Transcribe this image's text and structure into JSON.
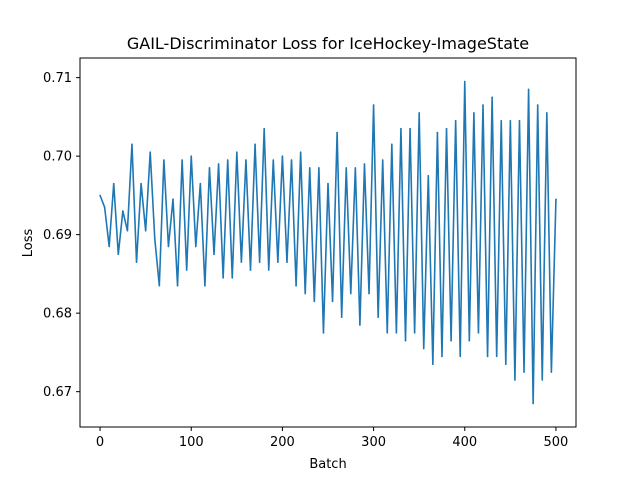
{
  "chart_data": {
    "type": "line",
    "title": "GAIL-Discriminator Loss for IceHockey-ImageState",
    "xlabel": "Batch",
    "ylabel": "Loss",
    "xlim": [
      -22,
      522
    ],
    "ylim": [
      0.6655,
      0.7125
    ],
    "xticks": [
      0,
      100,
      200,
      300,
      400,
      500
    ],
    "xtick_labels": [
      "0",
      "100",
      "200",
      "300",
      "400",
      "500"
    ],
    "yticks": [
      0.67,
      0.68,
      0.69,
      0.7,
      0.71
    ],
    "ytick_labels": [
      "0.67",
      "0.68",
      "0.69",
      "0.70",
      "0.71"
    ],
    "grid": false,
    "series": [
      {
        "color": "#1f77b4",
        "x": [
          0,
          5,
          10,
          15,
          20,
          25,
          30,
          35,
          40,
          45,
          50,
          55,
          60,
          65,
          70,
          75,
          80,
          85,
          90,
          95,
          100,
          105,
          110,
          115,
          120,
          125,
          130,
          135,
          140,
          145,
          150,
          155,
          160,
          165,
          170,
          175,
          180,
          185,
          190,
          195,
          200,
          205,
          210,
          215,
          220,
          225,
          230,
          235,
          240,
          245,
          250,
          255,
          260,
          265,
          270,
          275,
          280,
          285,
          290,
          295,
          300,
          305,
          310,
          315,
          320,
          325,
          330,
          335,
          340,
          345,
          350,
          355,
          360,
          365,
          370,
          375,
          380,
          385,
          390,
          395,
          400,
          405,
          410,
          415,
          420,
          425,
          430,
          435,
          440,
          445,
          450,
          455,
          460,
          465,
          470,
          475,
          480,
          485,
          490,
          495,
          500
        ],
        "y": [
          0.695,
          0.6935,
          0.6885,
          0.6965,
          0.6875,
          0.693,
          0.6905,
          0.7015,
          0.6865,
          0.6965,
          0.6905,
          0.7005,
          0.6895,
          0.6835,
          0.6995,
          0.6885,
          0.6945,
          0.6835,
          0.6995,
          0.6855,
          0.7,
          0.6885,
          0.6965,
          0.6835,
          0.6985,
          0.6875,
          0.699,
          0.6845,
          0.6995,
          0.6845,
          0.7005,
          0.6865,
          0.6995,
          0.6855,
          0.7015,
          0.6865,
          0.7035,
          0.6855,
          0.6995,
          0.6865,
          0.7,
          0.6865,
          0.6995,
          0.6835,
          0.7005,
          0.6825,
          0.6985,
          0.6815,
          0.6985,
          0.6775,
          0.6965,
          0.6815,
          0.703,
          0.6795,
          0.6985,
          0.6825,
          0.6985,
          0.6785,
          0.699,
          0.6825,
          0.7065,
          0.6795,
          0.6995,
          0.6775,
          0.7015,
          0.6775,
          0.7035,
          0.6765,
          0.7035,
          0.6775,
          0.7055,
          0.6755,
          0.6975,
          0.6735,
          0.703,
          0.6745,
          0.7035,
          0.6765,
          0.7045,
          0.6745,
          0.7095,
          0.6765,
          0.7055,
          0.6775,
          0.7065,
          0.6745,
          0.7075,
          0.6745,
          0.7045,
          0.6735,
          0.7045,
          0.6715,
          0.7045,
          0.6725,
          0.7085,
          0.6685,
          0.7065,
          0.6715,
          0.7055,
          0.6725,
          0.6945
        ]
      }
    ]
  }
}
